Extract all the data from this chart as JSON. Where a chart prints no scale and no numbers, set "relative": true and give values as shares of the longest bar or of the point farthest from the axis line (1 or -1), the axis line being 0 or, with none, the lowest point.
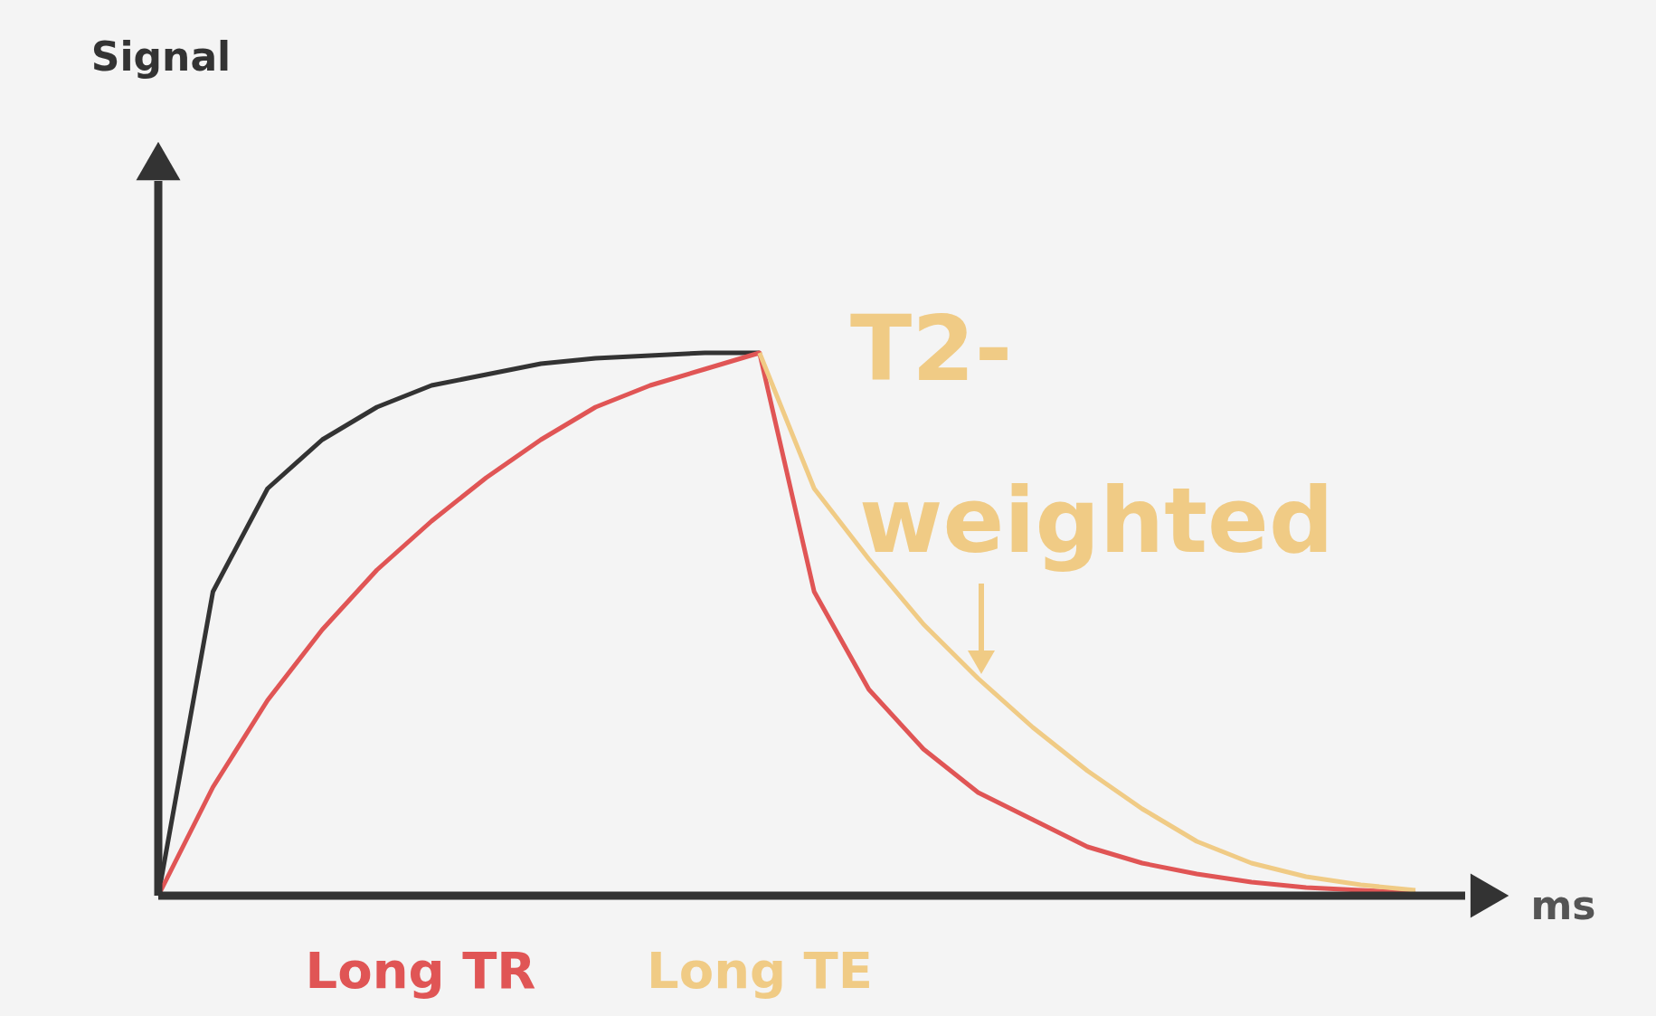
{
  "chart_data": {
    "type": "line",
    "relative": true,
    "xlabel": "ms",
    "categories": [
      null,
      null,
      null,
      null,
      null,
      null,
      null,
      null,
      null,
      null,
      null,
      null,
      null,
      null,
      null,
      null,
      null,
      null,
      null,
      null,
      null,
      null,
      null,
      null
    ],
    "series": [
      {
        "color": "#333333",
        "values": [
          0,
          0.56,
          0.75,
          0.84,
          0.9,
          0.94,
          0.96,
          0.98,
          0.99,
          0.995,
          1,
          1,
          null,
          null,
          null,
          null,
          null,
          null,
          null,
          null,
          null,
          null,
          null,
          null
        ]
      },
      {
        "color": "#e05555",
        "values": [
          0,
          0.2,
          0.36,
          0.49,
          0.6,
          0.69,
          0.77,
          0.84,
          0.9,
          0.94,
          0.97,
          1,
          0.56,
          0.38,
          0.27,
          0.19,
          0.14,
          0.09,
          0.06,
          0.04,
          0.025,
          0.015,
          0.01,
          0.005
        ]
      },
      {
        "color": "#f0cb85",
        "values": [
          null,
          null,
          null,
          null,
          null,
          null,
          null,
          null,
          null,
          null,
          null,
          1,
          0.75,
          0.62,
          0.5,
          0.4,
          0.31,
          0.23,
          0.16,
          0.1,
          0.06,
          0.035,
          0.02,
          0.01
        ]
      }
    ],
    "annotations": [
      "Signal",
      "T2-",
      "weighted",
      "Long TR",
      "Long TE"
    ],
    "marker": "none",
    "line_style": "solid"
  }
}
